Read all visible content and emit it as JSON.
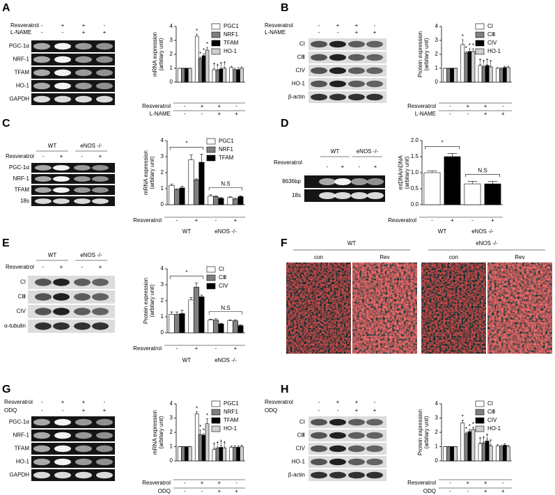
{
  "panel_labels": [
    "A",
    "B",
    "C",
    "D",
    "E",
    "F",
    "G",
    "H"
  ],
  "gels": [
    {
      "treatments": [
        {
          "label": "Resveratrol",
          "signs": [
            "-",
            "+",
            "+",
            "-"
          ]
        },
        {
          "label": "L-NAME",
          "signs": [
            "-",
            "-",
            "+",
            "+"
          ]
        }
      ],
      "rows": [
        "PGC-1α",
        "NRF-1",
        "TFAM",
        "HO-1",
        "GAPDH"
      ]
    },
    {
      "treatments": [
        {
          "label": "Resveratrol",
          "signs": [
            "-",
            "+",
            "+",
            "-"
          ]
        },
        {
          "label": "L-NAME",
          "signs": [
            "-",
            "-",
            "+",
            "+"
          ]
        }
      ],
      "rows": [
        "CI",
        "CⅢ",
        "CIV",
        "HO-1",
        "β-actin"
      ]
    },
    {
      "groups": [
        "WT",
        "eNOS -/-"
      ],
      "treatments": [
        {
          "label": "Resveratrol",
          "signs": [
            "-",
            "+",
            "-",
            "+"
          ]
        }
      ],
      "rows": [
        "PGC-1α",
        "NRF-1",
        "TFAM",
        "18s"
      ]
    },
    {
      "groups": [
        "WT",
        "eNOS -/-"
      ],
      "treatments": [
        {
          "label": "Resveratrol",
          "signs": [
            "-",
            "+",
            "-",
            "+"
          ]
        }
      ],
      "rows": [
        "8636bp",
        "18s"
      ]
    },
    {
      "groups": [
        "WT",
        "eNOS -/-"
      ],
      "treatments": [
        {
          "label": "Resveratrol",
          "signs": [
            "-",
            "+",
            "-",
            "+"
          ]
        }
      ],
      "rows": [
        "CI",
        "CⅢ",
        "CIV",
        "α-tubulin"
      ]
    },
    {
      "treatments": [
        {
          "label": "Resveratrol",
          "signs": [
            "-",
            "+",
            "+",
            "-"
          ]
        },
        {
          "label": "ODQ",
          "signs": [
            "-",
            "-",
            "+",
            "+"
          ]
        }
      ],
      "rows": [
        "PGC-1α",
        "NRF-1",
        "TFAM",
        "HO-1",
        "GAPDH"
      ]
    },
    {
      "treatments": [
        {
          "label": "Resveratrol",
          "signs": [
            "-",
            "+",
            "+",
            "-"
          ]
        },
        {
          "label": "ODQ",
          "signs": [
            "-",
            "-",
            "+",
            "+"
          ]
        }
      ],
      "rows": [
        "CI",
        "CⅢ",
        "CIV",
        "HO-1",
        "β-actin"
      ]
    }
  ],
  "image_panel": {
    "groups": [
      "WT",
      "eNOS -/-"
    ],
    "labels": [
      "con",
      "Rev",
      "con",
      "Rev"
    ]
  },
  "chart_data": [
    {
      "type": "bar",
      "y_label": [
        "mRNA expression",
        "(arbitary unit)"
      ],
      "ylim": [
        0,
        4
      ],
      "yticks": [
        0,
        1,
        2,
        3,
        4
      ],
      "treatments": [
        {
          "label": "Resveratrol",
          "signs": [
            "-",
            "+",
            "+",
            "-"
          ]
        },
        {
          "label": "L-NAME",
          "signs": [
            "-",
            "-",
            "+",
            "+"
          ]
        }
      ],
      "series": [
        {
          "name": "PGC1",
          "color": "#ffffff",
          "values": [
            1,
            3.3,
            0.9,
            1.05
          ],
          "errors": [
            0,
            0.15,
            0.1,
            0.1
          ],
          "markers": [
            null,
            "*",
            "†",
            null
          ]
        },
        {
          "name": "NRF1",
          "color": "#808080",
          "values": [
            1,
            1.7,
            0.85,
            0.9
          ],
          "errors": [
            0,
            0.1,
            0.08,
            0.1
          ],
          "markers": [
            null,
            "*",
            "†",
            null
          ]
        },
        {
          "name": "TFAM",
          "color": "#000000",
          "values": [
            1,
            1.9,
            0.95,
            0.9
          ],
          "errors": [
            0,
            0.15,
            0.1,
            0.15
          ],
          "markers": [
            null,
            "*",
            "†",
            null
          ]
        },
        {
          "name": "HO-1",
          "color": "#d0d0d0",
          "values": [
            1,
            2.3,
            1.0,
            1.0
          ],
          "errors": [
            0,
            0.2,
            0.1,
            0.1
          ],
          "markers": [
            null,
            "*",
            "†",
            null
          ]
        }
      ]
    },
    {
      "type": "bar",
      "y_label": [
        "Protein expression",
        "(arbitary unit)"
      ],
      "ylim": [
        0,
        4
      ],
      "yticks": [
        0,
        1,
        2,
        3,
        4
      ],
      "treatments": [
        {
          "label": "Resveratrol",
          "signs": [
            "-",
            "+",
            "+",
            "-"
          ]
        },
        {
          "label": "L-NAME",
          "signs": [
            "-",
            "-",
            "+",
            "+"
          ]
        }
      ],
      "series": [
        {
          "name": "CI",
          "color": "#ffffff",
          "values": [
            1,
            2.7,
            1.2,
            1.0
          ],
          "errors": [
            0,
            0.35,
            0.1,
            0.05
          ],
          "markers": [
            null,
            "*",
            "†",
            null
          ]
        },
        {
          "name": "CⅢ",
          "color": "#808080",
          "values": [
            1,
            2.1,
            1.1,
            0.95
          ],
          "errors": [
            0,
            0.1,
            0.1,
            0.08
          ],
          "markers": [
            null,
            "*",
            "†",
            null
          ]
        },
        {
          "name": "CIV",
          "color": "#000000",
          "values": [
            1,
            2.2,
            1.2,
            1.05
          ],
          "errors": [
            0,
            0.2,
            0.1,
            0.1
          ],
          "markers": [
            null,
            "*",
            "†",
            null
          ]
        },
        {
          "name": "HO-1",
          "color": "#d0d0d0",
          "values": [
            1,
            2.2,
            1.1,
            1.05
          ],
          "errors": [
            0,
            0.2,
            0.1,
            0.1
          ],
          "markers": [
            null,
            "*",
            "†",
            null
          ]
        }
      ]
    },
    {
      "type": "bar",
      "y_label": [
        "mRNA expression",
        "(arbitary unit)"
      ],
      "ylim": [
        0,
        4
      ],
      "yticks": [
        0,
        1,
        2,
        3,
        4
      ],
      "treatments": [
        {
          "label": "Resveratrol",
          "signs": [
            "-",
            "+",
            "-",
            "+"
          ]
        }
      ],
      "groups": [
        "WT",
        "eNOS -/-"
      ],
      "bracket_labels": [
        "*",
        "N.S"
      ],
      "series": [
        {
          "name": "PGC1",
          "color": "#ffffff",
          "values": [
            1.2,
            2.8,
            0.55,
            0.45
          ],
          "errors": [
            0.08,
            0.3,
            0.08,
            0.05
          ]
        },
        {
          "name": "NRF1",
          "color": "#808080",
          "values": [
            0.95,
            1.55,
            0.5,
            0.35
          ],
          "errors": [
            0.05,
            0.06,
            0.05,
            0.05
          ]
        },
        {
          "name": "TFAM",
          "color": "#000000",
          "values": [
            1.05,
            2.65,
            0.4,
            0.5
          ],
          "errors": [
            0.1,
            0.5,
            0.05,
            0.05
          ]
        }
      ]
    },
    {
      "type": "bar",
      "y_label": [
        "mtDNA/nDNA",
        "(arbitary unit)"
      ],
      "ylim": [
        0,
        2
      ],
      "yticks": [
        {
          "value": 0,
          "label": "0.0"
        },
        {
          "value": 0.5,
          "label": "0.5"
        },
        {
          "value": 1,
          "label": "1.0"
        },
        {
          "value": 1.5,
          "label": "1.5"
        },
        {
          "value": 2,
          "label": "2.0"
        }
      ],
      "treatments": [
        {
          "label": "Resveratrol",
          "signs": [
            "-",
            "+",
            "-",
            "+"
          ]
        }
      ],
      "groups": [
        "WT",
        "eNOS -/-"
      ],
      "bracket_labels": [
        "*",
        "N.S"
      ],
      "values": [
        1.0,
        1.5,
        0.65,
        0.65
      ],
      "errors": [
        0.05,
        0.1,
        0.08,
        0.08
      ],
      "colors": [
        "#ffffff",
        "#000000",
        "#ffffff",
        "#000000"
      ]
    },
    {
      "type": "bar",
      "y_label": [
        "Protein expression",
        "(arbitary unit)"
      ],
      "ylim": [
        0,
        4
      ],
      "yticks": [
        0,
        1,
        2,
        3,
        4
      ],
      "treatments": [
        {
          "label": "Resveratrol",
          "signs": [
            "-",
            "+",
            "-",
            "+"
          ]
        }
      ],
      "groups": [
        "WT",
        "eNOS -/-"
      ],
      "bracket_labels": [
        "*",
        "N.S"
      ],
      "series": [
        {
          "name": "CI",
          "color": "#ffffff",
          "values": [
            1.15,
            2.05,
            0.8,
            0.75
          ],
          "errors": [
            0.15,
            0.15,
            0.05,
            0.05
          ]
        },
        {
          "name": "CⅢ",
          "color": "#808080",
          "values": [
            1.15,
            2.85,
            0.8,
            0.75
          ],
          "errors": [
            0.15,
            0.25,
            0.08,
            0.05
          ]
        },
        {
          "name": "CIV",
          "color": "#000000",
          "values": [
            1.2,
            2.25,
            0.55,
            0.45
          ],
          "errors": [
            0.2,
            0.1,
            0.05,
            0.05
          ]
        }
      ]
    },
    {
      "type": "bar",
      "y_label": [
        "mRNA expression",
        "(arbitary unit)"
      ],
      "ylim": [
        0,
        4
      ],
      "yticks": [
        0,
        1,
        2,
        3,
        4
      ],
      "treatments": [
        {
          "label": "Resveratrol",
          "signs": [
            "-",
            "+",
            "+",
            "-"
          ]
        },
        {
          "label": "ODQ",
          "signs": [
            "-",
            "-",
            "+",
            "+"
          ]
        }
      ],
      "series": [
        {
          "name": "PGC1",
          "color": "#ffffff",
          "values": [
            1,
            3.3,
            0.8,
            0.95
          ],
          "errors": [
            0,
            0.15,
            0.1,
            0.1
          ],
          "markers": [
            null,
            "*",
            "†",
            null
          ]
        },
        {
          "name": "NRF1",
          "color": "#808080",
          "values": [
            1,
            1.85,
            0.9,
            0.95
          ],
          "errors": [
            0,
            0.3,
            0.1,
            0.1
          ],
          "markers": [
            null,
            "*",
            "†",
            null
          ]
        },
        {
          "name": "TFAM",
          "color": "#000000",
          "values": [
            1,
            1.8,
            0.95,
            0.95
          ],
          "errors": [
            0,
            0.1,
            0.15,
            0.1
          ],
          "markers": [
            null,
            "*",
            "†",
            null
          ]
        },
        {
          "name": "HO-1",
          "color": "#d0d0d0",
          "values": [
            1,
            2.6,
            0.9,
            1.0
          ],
          "errors": [
            0,
            0.35,
            0.1,
            0.1
          ],
          "markers": [
            null,
            "*",
            "†",
            null
          ]
        }
      ]
    },
    {
      "type": "bar",
      "y_label": [
        "Protein expression",
        "(arbitary unit)"
      ],
      "ylim": [
        0,
        4
      ],
      "yticks": [
        0,
        1,
        2,
        3,
        4
      ],
      "treatments": [
        {
          "label": "Resveratrol",
          "signs": [
            "-",
            "+",
            "+",
            "-"
          ]
        },
        {
          "label": "ODQ",
          "signs": [
            "-",
            "-",
            "+",
            "+"
          ]
        }
      ],
      "series": [
        {
          "name": "CI",
          "color": "#ffffff",
          "values": [
            1,
            2.65,
            1.2,
            1.05
          ],
          "errors": [
            0,
            0.2,
            0.1,
            0.1
          ],
          "markers": [
            null,
            "*",
            "†",
            null
          ]
        },
        {
          "name": "CⅢ",
          "color": "#808080",
          "values": [
            1,
            1.9,
            1.25,
            1.0
          ],
          "errors": [
            0,
            0.1,
            0.1,
            0.1
          ],
          "markers": [
            null,
            "*",
            "†",
            null
          ]
        },
        {
          "name": "CIV",
          "color": "#000000",
          "values": [
            1,
            2.05,
            1.4,
            1.1
          ],
          "errors": [
            0,
            0.15,
            0.15,
            0.1
          ],
          "markers": [
            null,
            "*",
            "†",
            null
          ]
        },
        {
          "name": "HO-1",
          "color": "#d0d0d0",
          "values": [
            1,
            2.2,
            1.05,
            1.0
          ],
          "errors": [
            0,
            0.15,
            0.1,
            0.1
          ],
          "markers": [
            null,
            "*",
            "†",
            null
          ]
        }
      ]
    }
  ]
}
